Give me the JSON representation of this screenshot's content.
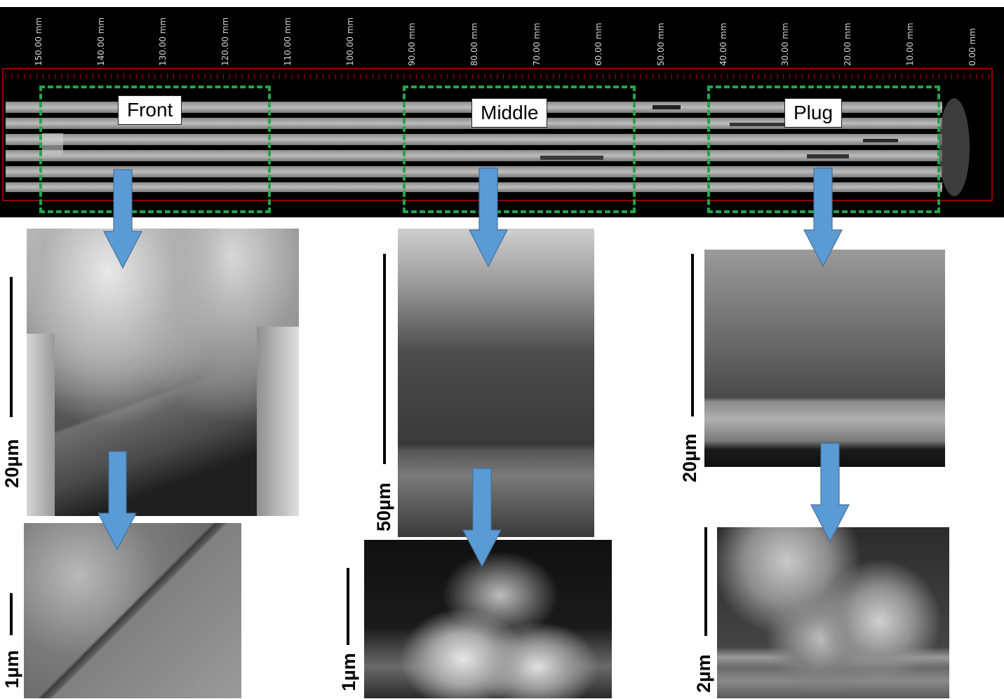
{
  "ruler": {
    "unit": "mm",
    "ticks": [
      "150.00 mm",
      "140.00 mm",
      "130.00 mm",
      "120.00 mm",
      "110.00 mm",
      "100.00 mm",
      "90.00 mm",
      "80.00 mm",
      "70.00 mm",
      "60.00 mm",
      "50.00 mm",
      "40.00 mm",
      "30.00 mm",
      "20.00 mm",
      "10.00 mm",
      "0.00 mm"
    ]
  },
  "regions": [
    {
      "label": "Front"
    },
    {
      "label": "Middle"
    },
    {
      "label": "Plug"
    }
  ],
  "scale_bars": {
    "front_overview": "20µm",
    "front_zoom": "1µm",
    "middle_overview": "50µm",
    "middle_zoom": "1µm",
    "plug_overview": "20µm",
    "plug_zoom": "2µm"
  },
  "colors": {
    "region_box": "#22a64a",
    "arrow": "#5b9bd5",
    "ruler": "#c00000"
  }
}
